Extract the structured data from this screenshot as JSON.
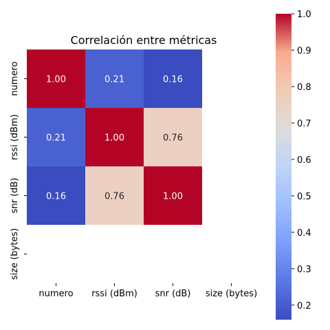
{
  "chart_data": {
    "type": "heatmap",
    "title": "Correlación entre métricas",
    "xlabel": "",
    "ylabel": "",
    "x_categories": [
      "numero",
      "rssi (dBm)",
      "snr (dB)",
      "size (bytes)"
    ],
    "y_categories": [
      "numero",
      "rssi (dBm)",
      "snr (dB)",
      "size (bytes)"
    ],
    "values": [
      [
        1.0,
        0.21,
        0.16,
        null
      ],
      [
        0.21,
        1.0,
        0.76,
        null
      ],
      [
        0.16,
        0.76,
        1.0,
        null
      ],
      [
        null,
        null,
        null,
        null
      ]
    ],
    "value_format": "0.00",
    "colormap": "coolwarm",
    "colorbar": {
      "range": [
        0.16,
        1.0
      ],
      "ticks": [
        "0.2",
        "0.3",
        "0.4",
        "0.5",
        "0.6",
        "0.7",
        "0.8",
        "0.9",
        "1.0"
      ],
      "tick_values": [
        0.2,
        0.3,
        0.4,
        0.5,
        0.6,
        0.7,
        0.8,
        0.9,
        1.0
      ]
    },
    "grid": false,
    "legend": "colorbar-right"
  }
}
